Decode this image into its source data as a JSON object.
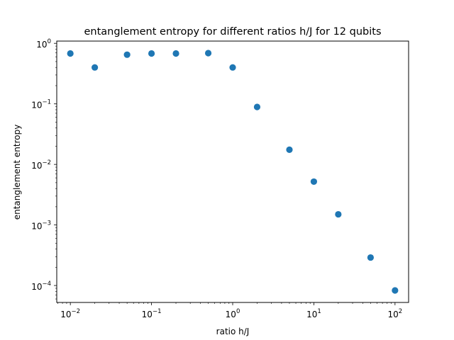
{
  "chart_data": {
    "type": "scatter",
    "title": "entanglement entropy for different ratios h/J for 12 qubits",
    "xlabel": "ratio h/J",
    "ylabel": "entanglement entropy",
    "xscale": "log",
    "yscale": "log",
    "xlim": [
      0.0068,
      147
    ],
    "ylim": [
      5.25e-05,
      1.09
    ],
    "x_ticks": [
      {
        "value": 0.01,
        "mantissa": "10",
        "exp": "−2"
      },
      {
        "value": 0.1,
        "mantissa": "10",
        "exp": "−1"
      },
      {
        "value": 1,
        "mantissa": "10",
        "exp": "0"
      },
      {
        "value": 10,
        "mantissa": "10",
        "exp": "1"
      },
      {
        "value": 100,
        "mantissa": "10",
        "exp": "2"
      }
    ],
    "y_ticks": [
      {
        "value": 0.0001,
        "mantissa": "10",
        "exp": "−4"
      },
      {
        "value": 0.001,
        "mantissa": "10",
        "exp": "−3"
      },
      {
        "value": 0.01,
        "mantissa": "10",
        "exp": "−2"
      },
      {
        "value": 0.1,
        "mantissa": "10",
        "exp": "−1"
      },
      {
        "value": 1,
        "mantissa": "10",
        "exp": "0"
      }
    ],
    "grid": false,
    "marker_color": "#1f77b4",
    "points": [
      {
        "x": 0.01,
        "y": 0.68
      },
      {
        "x": 0.02,
        "y": 0.4
      },
      {
        "x": 0.05,
        "y": 0.65
      },
      {
        "x": 0.1,
        "y": 0.68
      },
      {
        "x": 0.2,
        "y": 0.68
      },
      {
        "x": 0.5,
        "y": 0.69
      },
      {
        "x": 1,
        "y": 0.4
      },
      {
        "x": 2,
        "y": 0.089
      },
      {
        "x": 5,
        "y": 0.0175
      },
      {
        "x": 10,
        "y": 0.0052
      },
      {
        "x": 20,
        "y": 0.0015
      },
      {
        "x": 50,
        "y": 0.00029
      },
      {
        "x": 100,
        "y": 8.3e-05
      }
    ]
  }
}
